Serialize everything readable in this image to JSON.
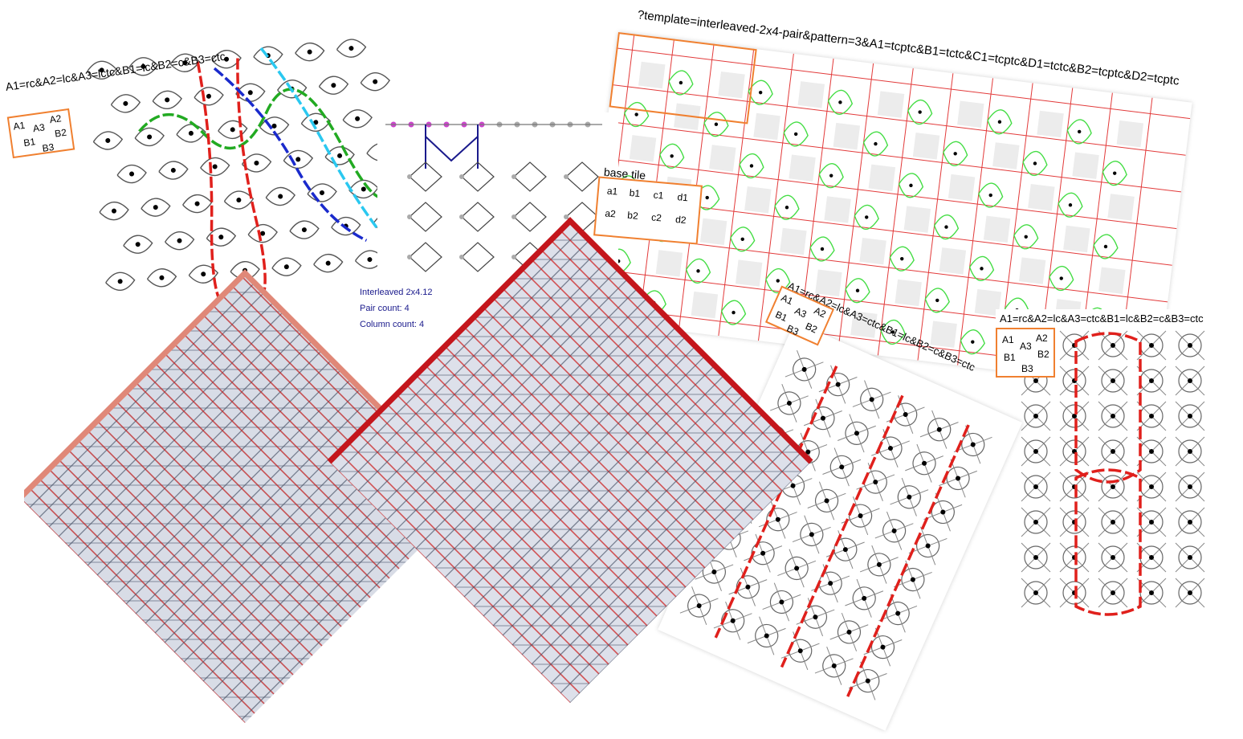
{
  "panel_a": {
    "formula": "A1=rc&A2=lc&A3=lctc&B1=lc&B2=c&B3=ctc",
    "tile": [
      "A1",
      "A2",
      "A3",
      "B1",
      "B2",
      "B3"
    ]
  },
  "panel_b": {
    "base_tile_label": "base tile",
    "tile": [
      "a1",
      "b1",
      "c1",
      "d1",
      "a2",
      "b2",
      "c2",
      "d2"
    ],
    "info": [
      "Interleaved 2x4.12",
      "Pair count: 4",
      "Column count: 4"
    ]
  },
  "panel_c": {
    "query": "?template=interleaved-2x4-pair&pattern=3&A1=tcptc&B1=tctc&C1=tcptc&D1=tctc&B2=tcptc&D2=tcptc"
  },
  "panel_d": {
    "formula": "A1=rc&A2=lc&A3=ctc&B1=lc&B2=c&B3=ctc",
    "tile": [
      "A1",
      "A2",
      "A3",
      "B1",
      "B2",
      "B3"
    ]
  },
  "panel_e": {
    "formula": "A1=rc&A2=lc&A3=ctc&B1=lc&B2=c&B3=ctc",
    "tile": [
      "A1",
      "A2",
      "A3",
      "B1",
      "B2",
      "B3"
    ]
  },
  "colors": {
    "tile_border": "#f08030",
    "thread_red": "#e0201c",
    "thread_green": "#22aa22",
    "thread_blue": "#1a2acc",
    "thread_cyan": "#2ac8f0",
    "lace_grey": "#5a6478",
    "grid_red": "#e23a3a",
    "link_green": "#44dd44"
  }
}
